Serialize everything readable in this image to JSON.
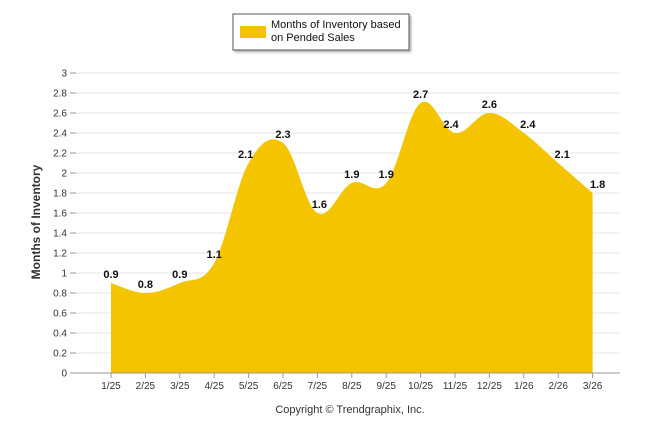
{
  "chart_data": {
    "type": "area",
    "categories": [
      "1/25",
      "2/25",
      "3/25",
      "4/25",
      "5/25",
      "6/25",
      "7/25",
      "8/25",
      "9/25",
      "10/25",
      "11/25",
      "12/25",
      "1/26",
      "2/26",
      "3/26"
    ],
    "series": [
      {
        "name": "Months of Inventory based on Pended Sales",
        "values": [
          0.9,
          0.8,
          0.9,
          1.1,
          2.1,
          2.3,
          1.6,
          1.9,
          1.9,
          2.7,
          2.4,
          2.6,
          2.4,
          2.1,
          1.8
        ],
        "labels": [
          "0.9",
          "0.8",
          "0.9",
          "1.1",
          "2.1",
          "2.3",
          "1.6",
          "1.9",
          "1.9",
          "2.7",
          "2.4",
          "2.6",
          "2.4",
          "2.1",
          "1.8"
        ],
        "color": "#F5C400"
      }
    ],
    "ylabel": "Months of Inventory",
    "xlabel": "",
    "ylim": [
      0,
      3
    ],
    "yticks": [
      "0",
      "0.2",
      "0.4",
      "0.6",
      "0.8",
      "1",
      "1.2",
      "1.4",
      "1.6",
      "1.8",
      "2",
      "2.2",
      "2.4",
      "2.6",
      "2.8",
      "3"
    ],
    "grid": true,
    "legend_position": "top-center"
  },
  "legend": {
    "line1": "Months of Inventory based",
    "line2": "on Pended Sales"
  },
  "footer": {
    "copyright": "Copyright © Trendgraphix, Inc."
  }
}
